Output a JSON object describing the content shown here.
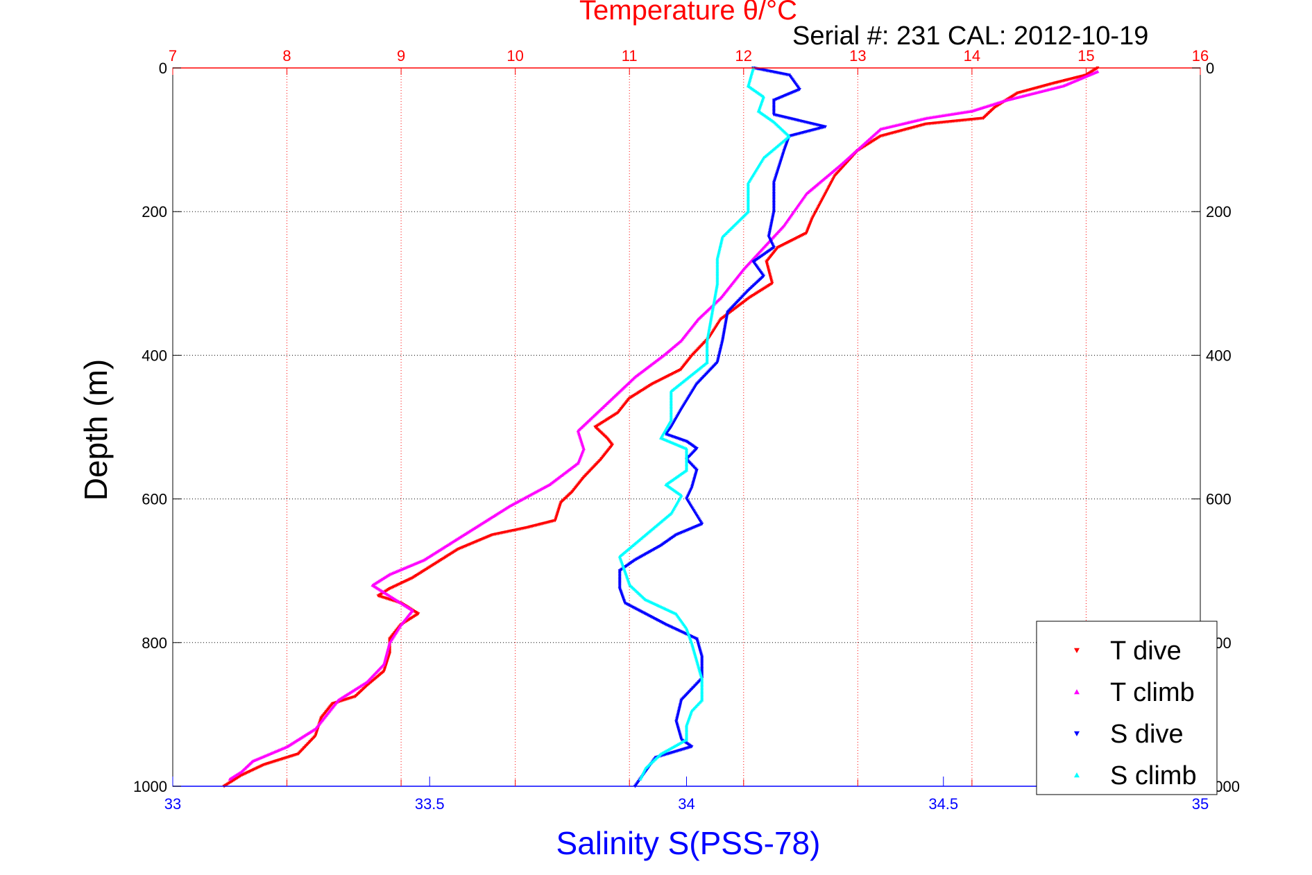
{
  "chart_data": {
    "type": "scatter",
    "title": "Temperature θ/°C",
    "subtitle": "Serial #: 231  CAL: 2012-10-19",
    "xlabel": "Salinity S(PSS-78)",
    "ylabel": "Depth (m)",
    "x_bottom": {
      "label": "Salinity S(PSS-78)",
      "lim": [
        33,
        35
      ],
      "ticks": [
        "33",
        "33.5",
        "34",
        "34.5",
        "35"
      ],
      "color": "#0000ff"
    },
    "x_top": {
      "label": "Temperature θ/°C",
      "lim": [
        7,
        16
      ],
      "ticks": [
        "7",
        "8",
        "9",
        "10",
        "11",
        "12",
        "13",
        "14",
        "15",
        "16"
      ],
      "color": "#ff0000"
    },
    "y": {
      "label": "Depth (m)",
      "lim": [
        0,
        1000
      ],
      "reversed": true,
      "ticks": [
        "0",
        "200",
        "400",
        "600",
        "800",
        "1000"
      ]
    },
    "grid": true,
    "legend_position": "bottom-right",
    "series": [
      {
        "name": "T dive",
        "axis": "temperature",
        "color": "#ff0000",
        "marker": "triangle-down",
        "points": [
          [
            15.1,
            0
          ],
          [
            15.0,
            10
          ],
          [
            14.7,
            22
          ],
          [
            14.4,
            35
          ],
          [
            14.2,
            55
          ],
          [
            14.1,
            70
          ],
          [
            13.6,
            78
          ],
          [
            13.2,
            95
          ],
          [
            13.0,
            115
          ],
          [
            12.8,
            150
          ],
          [
            12.7,
            180
          ],
          [
            12.6,
            210
          ],
          [
            12.55,
            230
          ],
          [
            12.3,
            250
          ],
          [
            12.2,
            270
          ],
          [
            12.25,
            300
          ],
          [
            12.05,
            320
          ],
          [
            11.8,
            350
          ],
          [
            11.7,
            375
          ],
          [
            11.55,
            400
          ],
          [
            11.45,
            420
          ],
          [
            11.2,
            440
          ],
          [
            11.0,
            460
          ],
          [
            10.9,
            480
          ],
          [
            10.7,
            500
          ],
          [
            10.8,
            515
          ],
          [
            10.85,
            525
          ],
          [
            10.75,
            545
          ],
          [
            10.6,
            570
          ],
          [
            10.5,
            590
          ],
          [
            10.4,
            605
          ],
          [
            10.35,
            630
          ],
          [
            10.1,
            640
          ],
          [
            9.8,
            650
          ],
          [
            9.5,
            670
          ],
          [
            9.3,
            690
          ],
          [
            9.1,
            710
          ],
          [
            8.9,
            725
          ],
          [
            8.8,
            735
          ],
          [
            9.0,
            745
          ],
          [
            9.15,
            760
          ],
          [
            9.0,
            775
          ],
          [
            8.9,
            795
          ],
          [
            8.9,
            815
          ],
          [
            8.85,
            840
          ],
          [
            8.7,
            860
          ],
          [
            8.6,
            875
          ],
          [
            8.4,
            885
          ],
          [
            8.3,
            905
          ],
          [
            8.25,
            930
          ],
          [
            8.1,
            955
          ],
          [
            7.8,
            970
          ],
          [
            7.6,
            985
          ],
          [
            7.45,
            1000
          ]
        ]
      },
      {
        "name": "T climb",
        "axis": "temperature",
        "color": "#ff00ff",
        "marker": "triangle-up",
        "points": [
          [
            15.1,
            5
          ],
          [
            14.8,
            25
          ],
          [
            14.3,
            45
          ],
          [
            14.0,
            60
          ],
          [
            13.6,
            70
          ],
          [
            13.2,
            85
          ],
          [
            12.85,
            135
          ],
          [
            12.55,
            175
          ],
          [
            12.35,
            220
          ],
          [
            12.0,
            280
          ],
          [
            11.9,
            300
          ],
          [
            11.8,
            320
          ],
          [
            11.6,
            350
          ],
          [
            11.45,
            380
          ],
          [
            11.3,
            400
          ],
          [
            11.05,
            430
          ],
          [
            10.85,
            460
          ],
          [
            10.65,
            490
          ],
          [
            10.55,
            505
          ],
          [
            10.6,
            530
          ],
          [
            10.55,
            550
          ],
          [
            10.3,
            580
          ],
          [
            9.95,
            610
          ],
          [
            9.75,
            630
          ],
          [
            9.5,
            655
          ],
          [
            9.2,
            685
          ],
          [
            8.9,
            705
          ],
          [
            8.75,
            720
          ],
          [
            8.9,
            735
          ],
          [
            9.1,
            755
          ],
          [
            9.0,
            775
          ],
          [
            8.9,
            800
          ],
          [
            8.85,
            830
          ],
          [
            8.7,
            855
          ],
          [
            8.6,
            865
          ],
          [
            8.45,
            880
          ],
          [
            8.35,
            900
          ],
          [
            8.25,
            920
          ],
          [
            8.0,
            945
          ],
          [
            7.7,
            965
          ],
          [
            7.6,
            980
          ],
          [
            7.5,
            990
          ]
        ]
      },
      {
        "name": "S dive",
        "axis": "salinity",
        "color": "#0000ff",
        "marker": "triangle-down",
        "points": [
          [
            34.13,
            0
          ],
          [
            34.2,
            10
          ],
          [
            34.22,
            30
          ],
          [
            34.17,
            45
          ],
          [
            34.17,
            65
          ],
          [
            34.27,
            82
          ],
          [
            34.2,
            95
          ],
          [
            34.19,
            115
          ],
          [
            34.17,
            160
          ],
          [
            34.17,
            200
          ],
          [
            34.16,
            235
          ],
          [
            34.17,
            250
          ],
          [
            34.13,
            270
          ],
          [
            34.15,
            290
          ],
          [
            34.12,
            310
          ],
          [
            34.08,
            340
          ],
          [
            34.07,
            380
          ],
          [
            34.06,
            410
          ],
          [
            34.02,
            440
          ],
          [
            33.99,
            475
          ],
          [
            33.97,
            500
          ],
          [
            33.96,
            510
          ],
          [
            34.0,
            520
          ],
          [
            34.02,
            530
          ],
          [
            34.0,
            545
          ],
          [
            34.02,
            560
          ],
          [
            34.01,
            585
          ],
          [
            34.0,
            600
          ],
          [
            34.03,
            635
          ],
          [
            33.98,
            650
          ],
          [
            33.95,
            665
          ],
          [
            33.9,
            685
          ],
          [
            33.87,
            700
          ],
          [
            33.87,
            725
          ],
          [
            33.88,
            745
          ],
          [
            33.92,
            760
          ],
          [
            33.96,
            775
          ],
          [
            34.02,
            795
          ],
          [
            34.03,
            820
          ],
          [
            34.03,
            850
          ],
          [
            33.99,
            880
          ],
          [
            33.98,
            910
          ],
          [
            33.99,
            935
          ],
          [
            34.01,
            945
          ],
          [
            33.94,
            960
          ],
          [
            33.92,
            980
          ],
          [
            33.9,
            1000
          ]
        ]
      },
      {
        "name": "S climb",
        "axis": "salinity",
        "color": "#00ffff",
        "marker": "triangle-up",
        "points": [
          [
            34.13,
            0
          ],
          [
            34.12,
            25
          ],
          [
            34.15,
            40
          ],
          [
            34.14,
            60
          ],
          [
            34.17,
            75
          ],
          [
            34.2,
            95
          ],
          [
            34.15,
            125
          ],
          [
            34.12,
            160
          ],
          [
            34.12,
            200
          ],
          [
            34.07,
            235
          ],
          [
            34.06,
            265
          ],
          [
            34.06,
            300
          ],
          [
            34.05,
            340
          ],
          [
            34.04,
            380
          ],
          [
            34.04,
            410
          ],
          [
            33.97,
            450
          ],
          [
            33.97,
            490
          ],
          [
            33.95,
            515
          ],
          [
            34.0,
            530
          ],
          [
            34.0,
            560
          ],
          [
            33.96,
            580
          ],
          [
            33.99,
            595
          ],
          [
            33.97,
            620
          ],
          [
            33.92,
            650
          ],
          [
            33.87,
            680
          ],
          [
            33.88,
            700
          ],
          [
            33.89,
            720
          ],
          [
            33.92,
            740
          ],
          [
            33.98,
            760
          ],
          [
            34.0,
            780
          ],
          [
            34.01,
            800
          ],
          [
            34.02,
            825
          ],
          [
            34.03,
            850
          ],
          [
            34.03,
            880
          ],
          [
            34.01,
            895
          ],
          [
            34.0,
            915
          ],
          [
            34.0,
            935
          ],
          [
            33.95,
            955
          ],
          [
            33.92,
            975
          ],
          [
            33.91,
            990
          ]
        ]
      }
    ]
  }
}
